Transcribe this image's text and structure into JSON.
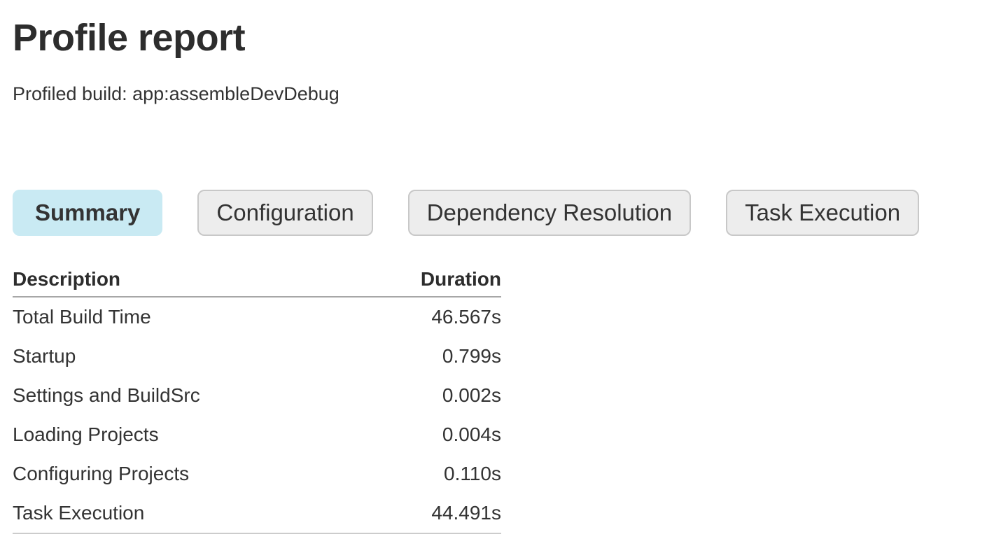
{
  "page": {
    "title": "Profile report",
    "subtitle": "Profiled build: app:assembleDevDebug"
  },
  "tabs": [
    {
      "label": "Summary",
      "selected": true
    },
    {
      "label": "Configuration",
      "selected": false
    },
    {
      "label": "Dependency Resolution",
      "selected": false
    },
    {
      "label": "Task Execution",
      "selected": false
    }
  ],
  "summary_table": {
    "columns": [
      "Description",
      "Duration"
    ],
    "rows": [
      {
        "description": "Total Build Time",
        "duration": "46.567s"
      },
      {
        "description": "Startup",
        "duration": "0.799s"
      },
      {
        "description": "Settings and BuildSrc",
        "duration": "0.002s"
      },
      {
        "description": "Loading Projects",
        "duration": "0.004s"
      },
      {
        "description": "Configuring Projects",
        "duration": "0.110s"
      },
      {
        "description": "Task Execution",
        "duration": "44.491s"
      }
    ]
  },
  "colors": {
    "text": "#333333",
    "title": "#2d2d2d",
    "selected_tab_bg": "#c9eaf3",
    "tab_bg": "#ededed",
    "tab_border": "#c8c8c8",
    "header_rule": "#a7a7a7",
    "table_bottom_rule": "#cccccc"
  }
}
